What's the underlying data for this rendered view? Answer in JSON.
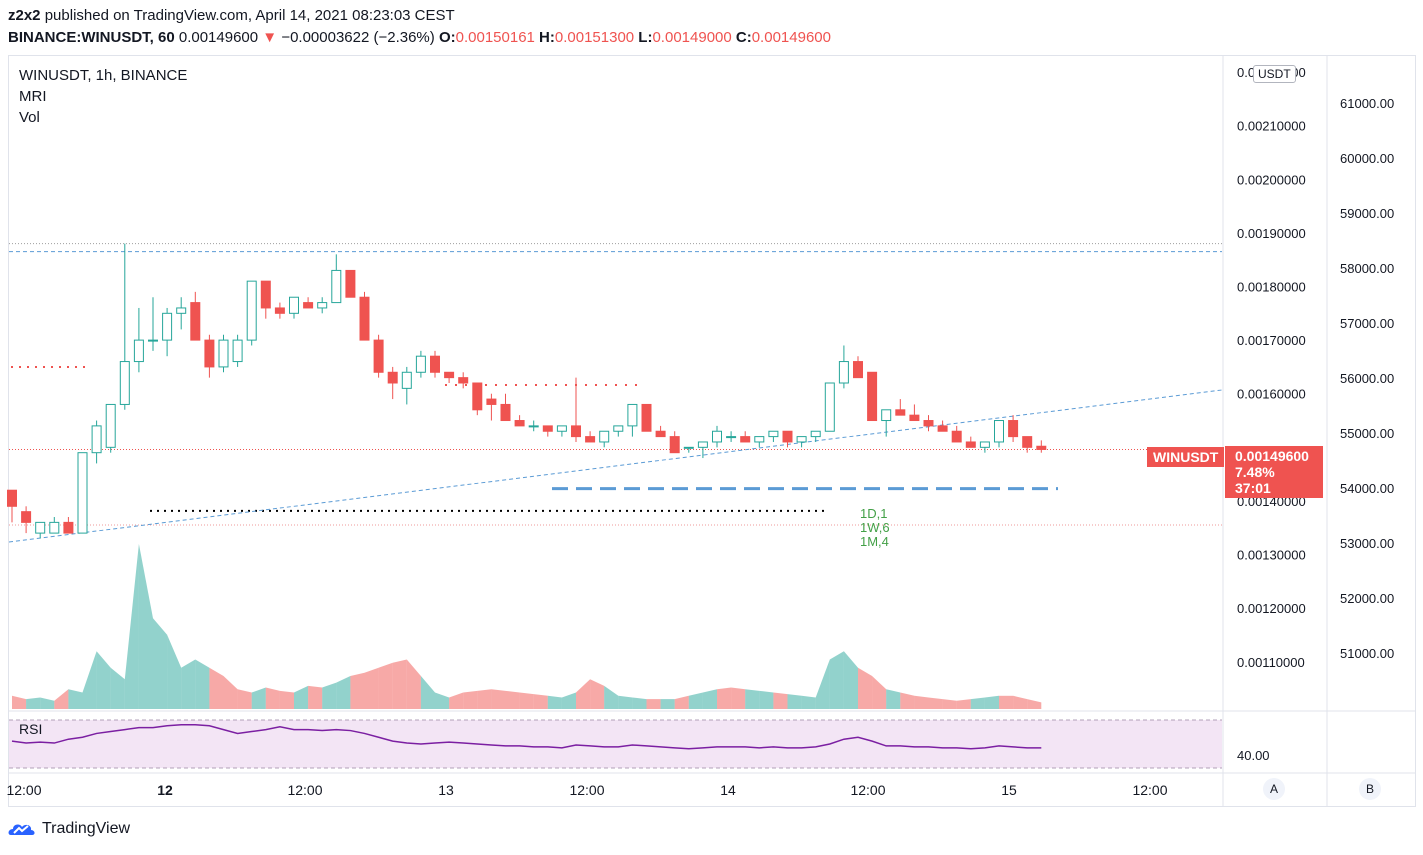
{
  "header": {
    "author": "z2x2",
    "published_text": "published on TradingView.com, April 14, 2021 08:23:03 CEST",
    "symbol_line": "BINANCE:WINUSDT, 60",
    "last_price": "0.00149600",
    "change_arrow": "▼",
    "change": "−0.00003622 (−2.36%)",
    "o_label": "O:",
    "o_value": "0.00150161",
    "h_label": "H:",
    "h_value": "0.00151300",
    "l_label": "L:",
    "l_value": "0.00149000",
    "c_label": "C:",
    "c_value": "0.00149600"
  },
  "legend": {
    "title": "WINUSDT, 1h, BINANCE",
    "indicator1": "MRI",
    "indicator2": "Vol",
    "rsi": "RSI"
  },
  "price_scale": {
    "currency": "USDT",
    "ticks": [
      "0.00220000",
      "0.00210000",
      "0.00200000",
      "0.00190000",
      "0.00180000",
      "0.00170000",
      "0.00160000",
      "0.00140000",
      "0.00130000",
      "0.00120000",
      "0.00110000"
    ],
    "tick_values": [
      0.0022,
      0.0021,
      0.002,
      0.0019,
      0.0018,
      0.0017,
      0.0016,
      0.0014,
      0.0013,
      0.0012,
      0.0011
    ],
    "symbol_tag": "WINUSDT",
    "current_price": "0.00149600",
    "current_value": 0.001496,
    "change_pct": "7.48%",
    "countdown": "37:01"
  },
  "secondary_scale": {
    "ticks": [
      "61000.00",
      "60000.00",
      "59000.00",
      "58000.00",
      "57000.00",
      "56000.00",
      "55000.00",
      "54000.00",
      "53000.00",
      "52000.00",
      "51000.00"
    ]
  },
  "rsi_scale": {
    "tick": "40.00"
  },
  "time_axis": {
    "labels": [
      "12:00",
      "12",
      "12:00",
      "13",
      "12:00",
      "14",
      "12:00",
      "15",
      "12:00"
    ],
    "bold": [
      false,
      true,
      false,
      false,
      false,
      false,
      false,
      false,
      false
    ]
  },
  "buttons": {
    "a": "A",
    "b": "B"
  },
  "mri_summary": [
    "1D,1",
    "1W,6",
    "1M,4"
  ],
  "colors": {
    "up": "#26a69a",
    "down": "#ef5350",
    "trend": "#5b9bd5",
    "rsi_line": "#7b1fa2",
    "rsi_bg": "#f3e5f5"
  },
  "brand": "TradingView",
  "chart_data": {
    "type": "candlestick",
    "timeframe": "1h",
    "ylim": [
      0.00101,
      0.00223
    ],
    "candles_ohlc": [
      [
        0.00142,
        0.00142,
        0.00136,
        0.00139
      ],
      [
        0.00138,
        0.00139,
        0.00134,
        0.00136
      ],
      [
        0.00134,
        0.00136,
        0.00133,
        0.00136
      ],
      [
        0.00134,
        0.00137,
        0.00134,
        0.00136
      ],
      [
        0.00136,
        0.00137,
        0.00134,
        0.00134
      ],
      [
        0.00134,
        0.00149,
        0.00134,
        0.00149
      ],
      [
        0.00149,
        0.00155,
        0.00147,
        0.00154
      ],
      [
        0.0015,
        0.00158,
        0.00149,
        0.00158
      ],
      [
        0.00158,
        0.00188,
        0.00157,
        0.00166
      ],
      [
        0.00166,
        0.00176,
        0.00164,
        0.0017
      ],
      [
        0.0017,
        0.00178,
        0.00168,
        0.0017
      ],
      [
        0.0017,
        0.00176,
        0.00167,
        0.00175
      ],
      [
        0.00175,
        0.00178,
        0.00172,
        0.00176
      ],
      [
        0.00177,
        0.00179,
        0.00172,
        0.0017
      ],
      [
        0.0017,
        0.00171,
        0.00163,
        0.00165
      ],
      [
        0.00165,
        0.00171,
        0.00164,
        0.0017
      ],
      [
        0.00166,
        0.00171,
        0.00165,
        0.0017
      ],
      [
        0.0017,
        0.00181,
        0.00169,
        0.00181
      ],
      [
        0.00181,
        0.00181,
        0.00174,
        0.00176
      ],
      [
        0.00176,
        0.00177,
        0.00174,
        0.00175
      ],
      [
        0.00175,
        0.00178,
        0.00174,
        0.00178
      ],
      [
        0.00177,
        0.00178,
        0.00176,
        0.00176
      ],
      [
        0.00176,
        0.00178,
        0.00175,
        0.00177
      ],
      [
        0.00177,
        0.00186,
        0.00177,
        0.00183
      ],
      [
        0.00183,
        0.00183,
        0.00178,
        0.00178
      ],
      [
        0.00178,
        0.00179,
        0.0017,
        0.0017
      ],
      [
        0.0017,
        0.00171,
        0.00163,
        0.00164
      ],
      [
        0.00164,
        0.00165,
        0.00159,
        0.00162
      ],
      [
        0.00161,
        0.00165,
        0.00158,
        0.00164
      ],
      [
        0.00164,
        0.00168,
        0.00163,
        0.00167
      ],
      [
        0.00167,
        0.00168,
        0.00163,
        0.00164
      ],
      [
        0.00164,
        0.00164,
        0.00162,
        0.00163
      ],
      [
        0.00163,
        0.00164,
        0.00161,
        0.00162
      ],
      [
        0.00162,
        0.00162,
        0.00156,
        0.00157
      ],
      [
        0.00159,
        0.0016,
        0.00155,
        0.00158
      ],
      [
        0.00158,
        0.0016,
        0.00156,
        0.00155
      ],
      [
        0.00155,
        0.00156,
        0.00154,
        0.00154
      ],
      [
        0.00154,
        0.00155,
        0.00153,
        0.00154
      ],
      [
        0.00154,
        0.00154,
        0.00152,
        0.00153
      ],
      [
        0.00153,
        0.00154,
        0.00152,
        0.00154
      ],
      [
        0.00154,
        0.00163,
        0.00151,
        0.00152
      ],
      [
        0.00152,
        0.00153,
        0.00151,
        0.00151
      ],
      [
        0.00151,
        0.00153,
        0.0015,
        0.00153
      ],
      [
        0.00153,
        0.00154,
        0.00152,
        0.00154
      ],
      [
        0.00154,
        0.00158,
        0.00152,
        0.00158
      ],
      [
        0.00158,
        0.00158,
        0.00153,
        0.00153
      ],
      [
        0.00153,
        0.00154,
        0.00153,
        0.00152
      ],
      [
        0.00152,
        0.00153,
        0.00149,
        0.00149
      ],
      [
        0.0015,
        0.0015,
        0.00149,
        0.0015
      ],
      [
        0.0015,
        0.00151,
        0.00148,
        0.00151
      ],
      [
        0.00151,
        0.00154,
        0.0015,
        0.00153
      ],
      [
        0.00152,
        0.00153,
        0.00151,
        0.00152
      ],
      [
        0.00152,
        0.00153,
        0.00151,
        0.00151
      ],
      [
        0.00151,
        0.00152,
        0.0015,
        0.00152
      ],
      [
        0.00152,
        0.00153,
        0.00151,
        0.00153
      ],
      [
        0.00153,
        0.00153,
        0.0015,
        0.00151
      ],
      [
        0.00151,
        0.00152,
        0.0015,
        0.00152
      ],
      [
        0.00152,
        0.00153,
        0.00151,
        0.00153
      ],
      [
        0.00153,
        0.00162,
        0.00153,
        0.00162
      ],
      [
        0.00162,
        0.00169,
        0.00161,
        0.00166
      ],
      [
        0.00166,
        0.00167,
        0.00163,
        0.00163
      ],
      [
        0.00164,
        0.00164,
        0.00156,
        0.00155
      ],
      [
        0.00155,
        0.00157,
        0.00152,
        0.00157
      ],
      [
        0.00157,
        0.00159,
        0.00156,
        0.00156
      ],
      [
        0.00156,
        0.00158,
        0.00155,
        0.00155
      ],
      [
        0.00155,
        0.00156,
        0.00153,
        0.00154
      ],
      [
        0.00154,
        0.00155,
        0.00153,
        0.00153
      ],
      [
        0.00153,
        0.00154,
        0.00151,
        0.00151
      ],
      [
        0.00151,
        0.00152,
        0.0015,
        0.0015
      ],
      [
        0.0015,
        0.00151,
        0.00149,
        0.00151
      ],
      [
        0.00151,
        0.00155,
        0.0015,
        0.00155
      ],
      [
        0.00155,
        0.00156,
        0.00151,
        0.00152
      ],
      [
        0.00152,
        0.00152,
        0.00149,
        0.0015
      ],
      [
        0.001502,
        0.001513,
        0.00149,
        0.001496
      ]
    ],
    "volume_relative": [
      0.08,
      0.06,
      0.07,
      0.05,
      0.12,
      0.1,
      0.35,
      0.25,
      0.18,
      1.0,
      0.55,
      0.45,
      0.25,
      0.3,
      0.25,
      0.2,
      0.12,
      0.1,
      0.13,
      0.11,
      0.1,
      0.14,
      0.13,
      0.16,
      0.2,
      0.22,
      0.25,
      0.28,
      0.3,
      0.2,
      0.1,
      0.07,
      0.1,
      0.11,
      0.12,
      0.11,
      0.1,
      0.09,
      0.08,
      0.07,
      0.1,
      0.18,
      0.14,
      0.08,
      0.07,
      0.06,
      0.06,
      0.06,
      0.08,
      0.1,
      0.12,
      0.13,
      0.12,
      0.11,
      0.1,
      0.09,
      0.08,
      0.07,
      0.3,
      0.35,
      0.25,
      0.2,
      0.12,
      0.1,
      0.08,
      0.07,
      0.06,
      0.05,
      0.06,
      0.07,
      0.08,
      0.08,
      0.06,
      0.04
    ],
    "volume_up": [
      false,
      true,
      true,
      false,
      true,
      true,
      true,
      true,
      true,
      true,
      true,
      true,
      true,
      true,
      false,
      false,
      false,
      true,
      false,
      false,
      true,
      false,
      true,
      true,
      false,
      false,
      false,
      false,
      false,
      true,
      true,
      false,
      false,
      false,
      false,
      false,
      false,
      false,
      true,
      true,
      false,
      false,
      true,
      true,
      true,
      false,
      true,
      false,
      true,
      true,
      false,
      false,
      true,
      true,
      false,
      true,
      true,
      true,
      true,
      true,
      false,
      false,
      true,
      false,
      false,
      false,
      false,
      false,
      true,
      true,
      false,
      false,
      false,
      false
    ],
    "rsi_values": [
      58,
      56,
      57,
      56,
      60,
      62,
      66,
      68,
      70,
      72,
      72,
      74,
      75,
      75,
      74,
      70,
      66,
      68,
      70,
      73,
      70,
      70,
      69,
      70,
      69,
      66,
      62,
      58,
      56,
      55,
      56,
      57,
      56,
      55,
      54,
      53,
      53,
      52,
      52,
      51,
      54,
      53,
      52,
      52,
      54,
      53,
      52,
      51,
      50,
      51,
      52,
      52,
      52,
      51,
      52,
      51,
      51,
      52,
      55,
      60,
      62,
      58,
      53,
      53,
      52,
      52,
      51,
      51,
      50,
      51,
      53,
      52,
      51,
      51
    ],
    "rsi_bands": [
      70,
      30
    ],
    "levels": {
      "upper_dotted": 0.00188,
      "upper_dashed": 0.001865,
      "mid_dotted": 0.0013815,
      "low_dotted": 0.001355,
      "support_dashed": 0.001423
    }
  }
}
